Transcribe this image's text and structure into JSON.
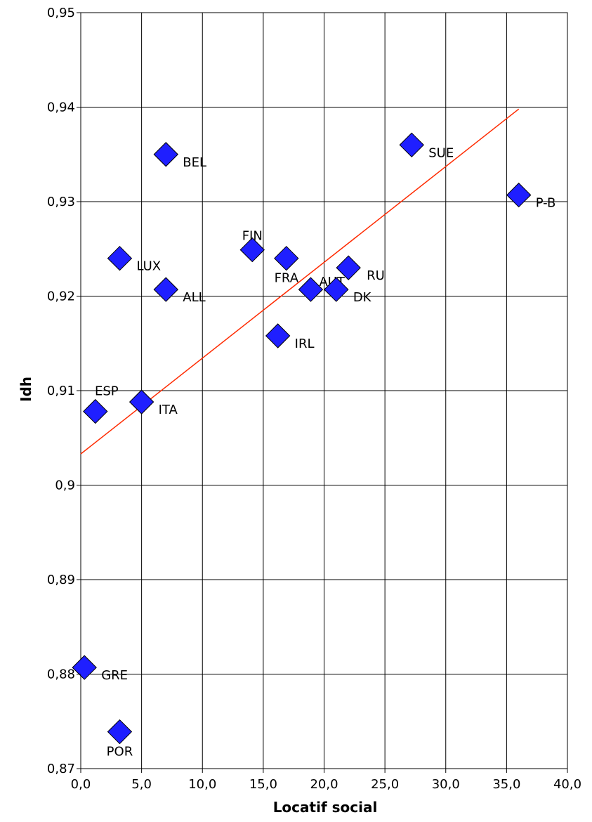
{
  "chart_data": {
    "type": "scatter",
    "title": "",
    "xlabel": "Locatif social",
    "ylabel": "Idh",
    "xlim": [
      0,
      40
    ],
    "ylim": [
      0.87,
      0.95
    ],
    "x_ticks": [
      0,
      5,
      10,
      15,
      20,
      25,
      30,
      35,
      40
    ],
    "x_tick_labels": [
      "0,0",
      "5,0",
      "10,0",
      "15,0",
      "20,0",
      "25,0",
      "30,0",
      "35,0",
      "40,0"
    ],
    "y_ticks": [
      0.87,
      0.88,
      0.89,
      0.9,
      0.91,
      0.92,
      0.93,
      0.94,
      0.95
    ],
    "y_tick_labels": [
      "0,87",
      "0,88",
      "0,89",
      "0,9",
      "0,91",
      "0,92",
      "0,93",
      "0,94",
      "0,95"
    ],
    "grid": true,
    "legend": "none",
    "marker_color": "#1f1fff",
    "trendline_color": "#ff2a00",
    "points": [
      {
        "label": "BEL",
        "x": 7.0,
        "y": 0.935,
        "label_pos": "right"
      },
      {
        "label": "SUE",
        "x": 27.2,
        "y": 0.936,
        "label_pos": "right"
      },
      {
        "label": "P-B",
        "x": 36.0,
        "y": 0.9307,
        "label_pos": "right"
      },
      {
        "label": "LUX",
        "x": 3.2,
        "y": 0.924,
        "label_pos": "right"
      },
      {
        "label": "ALL",
        "x": 7.0,
        "y": 0.9207,
        "label_pos": "right"
      },
      {
        "label": "FIN",
        "x": 14.1,
        "y": 0.9249,
        "label_pos": "above"
      },
      {
        "label": "FRA",
        "x": 16.9,
        "y": 0.924,
        "label_pos": "below"
      },
      {
        "label": "AUT",
        "x": 18.9,
        "y": 0.9207,
        "label_pos": "right-high"
      },
      {
        "label": "DK",
        "x": 21.0,
        "y": 0.9207,
        "label_pos": "right"
      },
      {
        "label": "RU",
        "x": 22.0,
        "y": 0.923,
        "label_pos": "right-low"
      },
      {
        "label": "IRL",
        "x": 16.2,
        "y": 0.9158,
        "label_pos": "right"
      },
      {
        "label": "ESP",
        "x": 1.2,
        "y": 0.9078,
        "label_pos": "above-right"
      },
      {
        "label": "ITA",
        "x": 5.0,
        "y": 0.9088,
        "label_pos": "right"
      },
      {
        "label": "GRE",
        "x": 0.3,
        "y": 0.8807,
        "label_pos": "right"
      },
      {
        "label": "POR",
        "x": 3.2,
        "y": 0.8739,
        "label_pos": "below"
      }
    ],
    "trendline": {
      "x": [
        0,
        36.0
      ],
      "y": [
        0.9033,
        0.9398
      ]
    }
  }
}
